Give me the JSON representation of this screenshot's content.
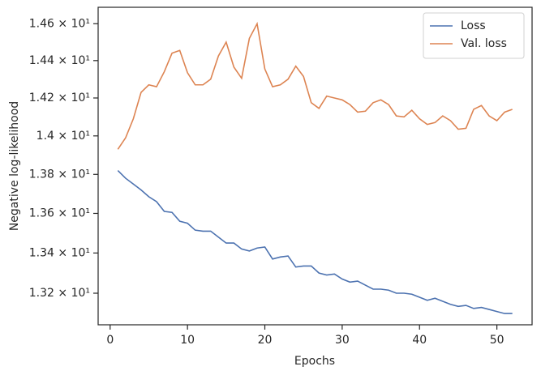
{
  "chart_data": {
    "type": "line",
    "xlabel": "Epochs",
    "ylabel": "Negative log-likelihood",
    "x": [
      1,
      2,
      3,
      4,
      5,
      6,
      7,
      8,
      9,
      10,
      11,
      12,
      13,
      14,
      15,
      16,
      17,
      18,
      19,
      20,
      21,
      22,
      23,
      24,
      25,
      26,
      27,
      28,
      29,
      30,
      31,
      32,
      33,
      34,
      35,
      36,
      37,
      38,
      39,
      40,
      41,
      42,
      43,
      44,
      45,
      46,
      47,
      48,
      49,
      50,
      51,
      52
    ],
    "series": [
      {
        "name": "Loss",
        "color": "#4c72b0",
        "values": [
          13.82,
          13.78,
          13.75,
          13.72,
          13.685,
          13.66,
          13.61,
          13.605,
          13.56,
          13.55,
          13.515,
          13.51,
          13.51,
          13.48,
          13.45,
          13.45,
          13.42,
          13.41,
          13.425,
          13.43,
          13.37,
          13.38,
          13.385,
          13.33,
          13.335,
          13.335,
          13.3,
          13.29,
          13.295,
          13.27,
          13.255,
          13.26,
          13.24,
          13.22,
          13.22,
          13.215,
          13.2,
          13.2,
          13.195,
          13.18,
          13.165,
          13.175,
          13.16,
          13.145,
          13.135,
          13.14,
          13.125,
          13.13,
          13.12,
          13.11,
          13.1,
          13.1
        ]
      },
      {
        "name": "Val. loss",
        "color": "#dd8452",
        "values": [
          13.93,
          13.99,
          14.09,
          14.23,
          14.27,
          14.26,
          14.34,
          14.44,
          14.455,
          14.335,
          14.27,
          14.27,
          14.3,
          14.425,
          14.5,
          14.365,
          14.305,
          14.52,
          14.6,
          14.355,
          14.26,
          14.27,
          14.3,
          14.37,
          14.315,
          14.175,
          14.145,
          14.21,
          14.2,
          14.19,
          14.165,
          14.125,
          14.13,
          14.175,
          14.19,
          14.165,
          14.105,
          14.1,
          14.135,
          14.09,
          14.06,
          14.07,
          14.105,
          14.08,
          14.035,
          14.04,
          14.14,
          14.16,
          14.105,
          14.08,
          14.125,
          14.14
        ]
      }
    ],
    "xlim": [
      -1.55,
      54.55
    ],
    "xticks": [
      0,
      10,
      20,
      30,
      40,
      50
    ],
    "ylim": [
      13.045,
      14.69
    ],
    "yscale": "log",
    "yticks": [
      {
        "value": 13.2,
        "label": "1.32 × 10¹"
      },
      {
        "value": 13.4,
        "label": "1.34 × 10¹"
      },
      {
        "value": 13.6,
        "label": "1.36 × 10¹"
      },
      {
        "value": 13.8,
        "label": "1.38 × 10¹"
      },
      {
        "value": 14,
        "label": "1.4 × 10¹"
      },
      {
        "value": 14.2,
        "label": "1.42 × 10¹"
      },
      {
        "value": 14.4,
        "label": "1.44 × 10¹"
      },
      {
        "value": 14.6,
        "label": "1.46 × 10¹"
      }
    ],
    "grid": false,
    "legend": "upper right"
  }
}
